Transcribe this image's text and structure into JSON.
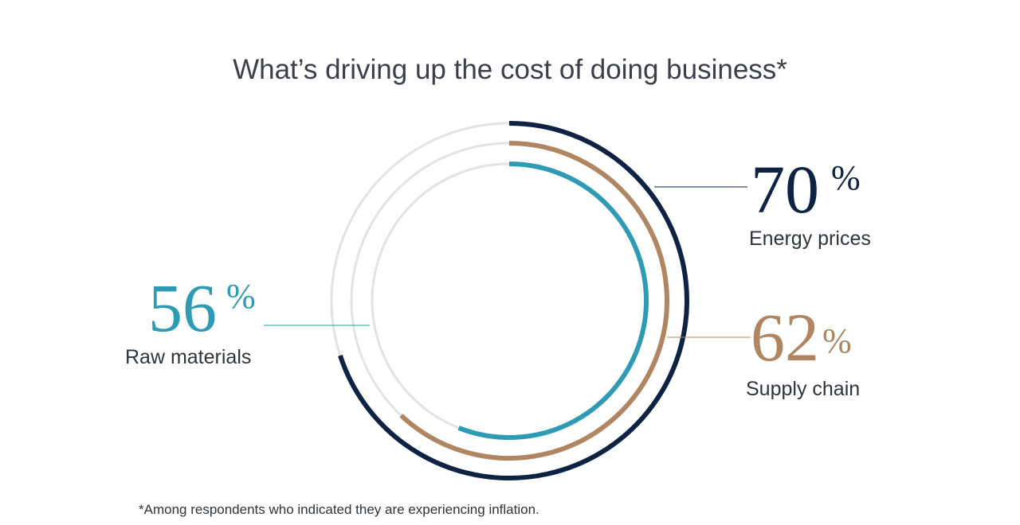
{
  "chart_data": {
    "type": "radial-bar",
    "title": "What’s driving up the cost of doing business*",
    "footnote": "*Among respondents who indicated they are experiencing inflation.",
    "unit": "%",
    "series": [
      {
        "label": "Energy prices",
        "value": 70,
        "value_text": "70",
        "color": "#0e2244"
      },
      {
        "label": "Supply chain",
        "value": 62,
        "value_text": "62",
        "color": "#b08662"
      },
      {
        "label": "Raw materials",
        "value": 56,
        "value_text": "56",
        "color": "#2e9ab3"
      }
    ],
    "track_color": "#e3e3e3"
  }
}
